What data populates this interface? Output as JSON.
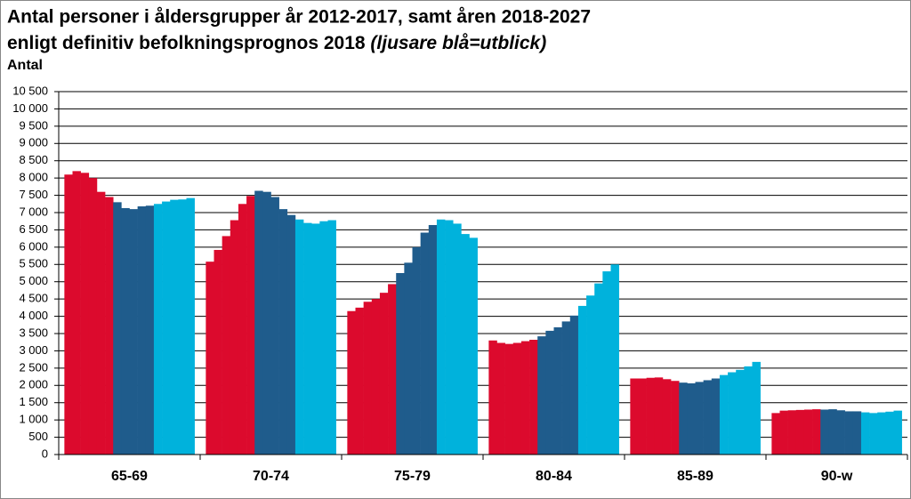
{
  "chart_data": {
    "type": "bar",
    "title": [
      "Antal personer i åldersgrupper år 2012-2017, samt åren 2018-2027",
      "enligt definitiv befolkningsprognos 2018"
    ],
    "title_note": "(ljusare blå=utblick)",
    "ylabel": "Antal",
    "categories": [
      "65-69",
      "70-74",
      "75-79",
      "80-84",
      "85-89",
      "90-w"
    ],
    "series": [
      {
        "color": "#dc0a2d",
        "values": [
          8100,
          5580,
          4150,
          3300,
          2200,
          1200
        ]
      },
      {
        "color": "#dc0a2d",
        "values": [
          8200,
          5920,
          4250,
          3230,
          2200,
          1270
        ]
      },
      {
        "color": "#dc0a2d",
        "values": [
          8150,
          6320,
          4420,
          3200,
          2220,
          1280
        ]
      },
      {
        "color": "#dc0a2d",
        "values": [
          8000,
          6780,
          4500,
          3230,
          2230,
          1290
        ]
      },
      {
        "color": "#dc0a2d",
        "values": [
          7600,
          7250,
          4680,
          3280,
          2180,
          1300
        ]
      },
      {
        "color": "#dc0a2d",
        "values": [
          7450,
          7480,
          4930,
          3320,
          2130,
          1310
        ]
      },
      {
        "color": "#1f5c8c",
        "values": [
          7300,
          7630,
          5250,
          3420,
          2080,
          1300
        ]
      },
      {
        "color": "#1f5c8c",
        "values": [
          7130,
          7600,
          5550,
          3580,
          2060,
          1310
        ]
      },
      {
        "color": "#1f5c8c",
        "values": [
          7100,
          7450,
          6000,
          3680,
          2100,
          1280
        ]
      },
      {
        "color": "#1f5c8c",
        "values": [
          7180,
          7100,
          6420,
          3850,
          2150,
          1250
        ]
      },
      {
        "color": "#1f5c8c",
        "values": [
          7200,
          6930,
          6640,
          4020,
          2200,
          1250
        ]
      },
      {
        "color": "#00b2dc",
        "values": [
          7250,
          6800,
          6800,
          4300,
          2300,
          1220
        ]
      },
      {
        "color": "#00b2dc",
        "values": [
          7320,
          6700,
          6780,
          4600,
          2380,
          1200
        ]
      },
      {
        "color": "#00b2dc",
        "values": [
          7370,
          6680,
          6680,
          4950,
          2450,
          1220
        ]
      },
      {
        "color": "#00b2dc",
        "values": [
          7380,
          6750,
          6380,
          5300,
          2550,
          1240
        ]
      },
      {
        "color": "#00b2dc",
        "values": [
          7420,
          6780,
          6270,
          5500,
          2680,
          1270
        ]
      }
    ],
    "ylim": [
      0,
      10500
    ],
    "yticks": [
      0,
      500,
      {
        "value": 1000,
        "label": "1 000"
      },
      {
        "value": 1500,
        "label": "1 500"
      },
      {
        "value": 2000,
        "label": "2 000"
      },
      {
        "value": 2500,
        "label": "2 500"
      },
      {
        "value": 3000,
        "label": "3 000"
      },
      {
        "value": 3500,
        "label": "3 500"
      },
      {
        "value": 4000,
        "label": "4 000"
      },
      {
        "value": 4500,
        "label": "4 500"
      },
      {
        "value": 5000,
        "label": "5 000"
      },
      {
        "value": 5500,
        "label": "5 500"
      },
      {
        "value": 6000,
        "label": "6 000"
      },
      {
        "value": 6500,
        "label": "6 500"
      },
      {
        "value": 7000,
        "label": "7 000"
      },
      {
        "value": 7500,
        "label": "7 500"
      },
      {
        "value": 8000,
        "label": "8 000"
      },
      {
        "value": 8500,
        "label": "8 500"
      },
      {
        "value": 9000,
        "label": "9 000"
      },
      {
        "value": 9500,
        "label": "9 500"
      },
      {
        "value": 10000,
        "label": "10 000"
      },
      {
        "value": 10500,
        "label": "10 500"
      }
    ],
    "grid": true
  }
}
